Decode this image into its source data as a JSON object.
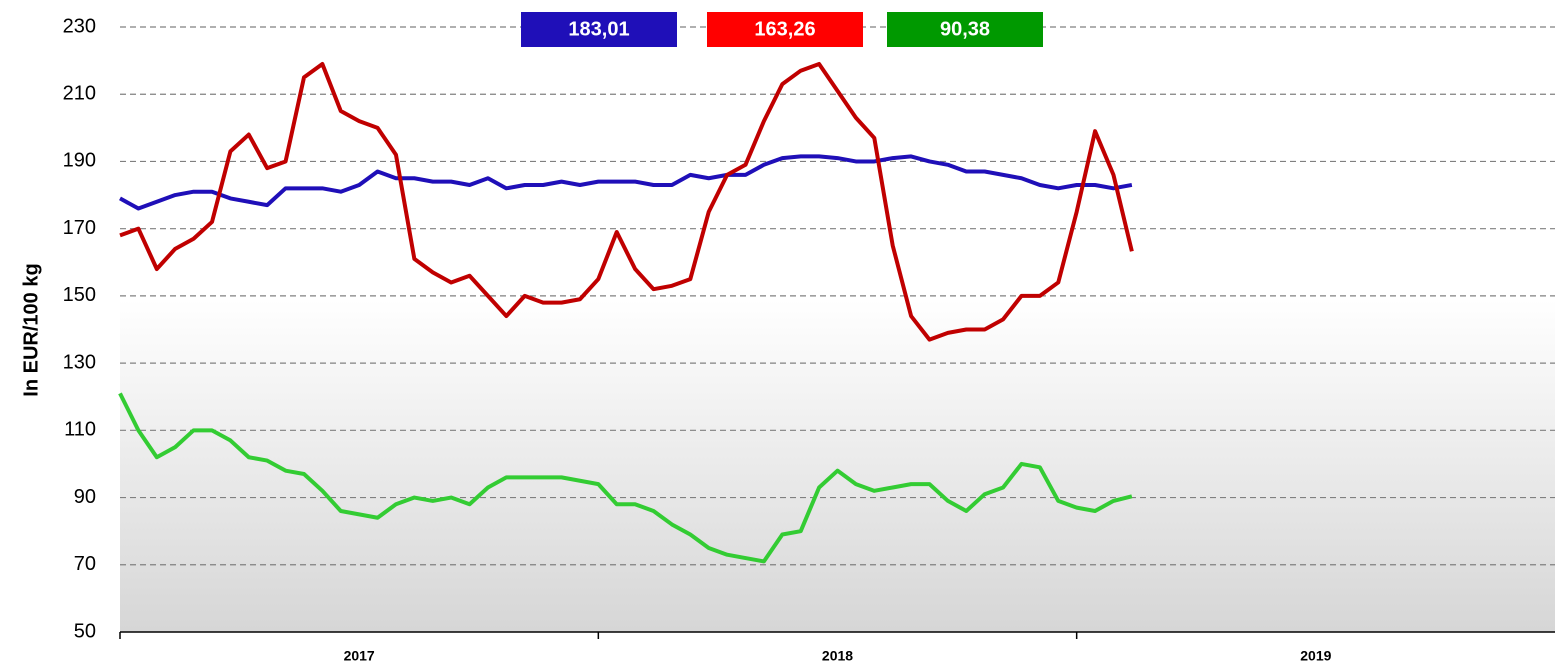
{
  "chart_data": {
    "type": "line",
    "y_label": "In EUR/100 kg",
    "year_labels": [
      "2017",
      "2018",
      "2019"
    ],
    "x": [
      0,
      2,
      4,
      6,
      8,
      10,
      12,
      14,
      16,
      18,
      20,
      22,
      24,
      26,
      28,
      30,
      32,
      34,
      36,
      38,
      40,
      42,
      44,
      46,
      48,
      50,
      52,
      54,
      56,
      58,
      60,
      62,
      64,
      66,
      68,
      70,
      72,
      74,
      76,
      78,
      80,
      82,
      84,
      86,
      88,
      90,
      92,
      94,
      96,
      98,
      100,
      102,
      104,
      106,
      108,
      110
    ],
    "xlim": [
      0,
      156
    ],
    "xticks": [
      0,
      52,
      104
    ],
    "ylim": [
      50,
      230
    ],
    "yticks": [
      50,
      70,
      90,
      110,
      130,
      150,
      170,
      190,
      210,
      230
    ],
    "grid": true,
    "series": [
      {
        "color": "#1f0fb8",
        "values": [
          179,
          176,
          178,
          180,
          181,
          181,
          179,
          178,
          177,
          182,
          182,
          182,
          181,
          183,
          187,
          185,
          185,
          184,
          184,
          183,
          185,
          182,
          183,
          183,
          184,
          183,
          184,
          184,
          184,
          183,
          183,
          186,
          185,
          186,
          186,
          189,
          191,
          191.5,
          191.5,
          191,
          190,
          190,
          191,
          191.5,
          190,
          189,
          187,
          187,
          186,
          185,
          183,
          182,
          183,
          183,
          182,
          183.01
        ],
        "value_labels": [
          null,
          null,
          null,
          null,
          null,
          null,
          null,
          null,
          null,
          null,
          null,
          null,
          null,
          null,
          null,
          null,
          null,
          null,
          null,
          null,
          null,
          null,
          null,
          null,
          null,
          null,
          null,
          null,
          null,
          null,
          null,
          null,
          null,
          null,
          null,
          null,
          null,
          null,
          null,
          null,
          null,
          null,
          null,
          null,
          null,
          null,
          null,
          null,
          null,
          null,
          null,
          null,
          null,
          null,
          null,
          "183,01"
        ]
      },
      {
        "color": "#c00000",
        "values": [
          168,
          170,
          158,
          164,
          167,
          172,
          193,
          198,
          188,
          190,
          215,
          219,
          205,
          202,
          200,
          192,
          161,
          157,
          154,
          156,
          150,
          144,
          150,
          148,
          148,
          149,
          155,
          169,
          158,
          152,
          153,
          155,
          175,
          186,
          189,
          202,
          213,
          217,
          219,
          211,
          203,
          197,
          165,
          144,
          137,
          139,
          140,
          140,
          143,
          150,
          150,
          154,
          175,
          199,
          186,
          163.26
        ],
        "value_labels": [
          null,
          null,
          null,
          null,
          null,
          null,
          null,
          null,
          null,
          null,
          null,
          null,
          null,
          null,
          null,
          null,
          null,
          null,
          null,
          null,
          null,
          null,
          null,
          null,
          null,
          null,
          null,
          null,
          null,
          null,
          null,
          null,
          null,
          null,
          null,
          null,
          null,
          null,
          null,
          null,
          null,
          null,
          null,
          null,
          null,
          null,
          null,
          null,
          null,
          null,
          null,
          null,
          null,
          null,
          null,
          "163,26"
        ]
      },
      {
        "color": "#33cc33",
        "values": [
          121,
          110,
          102,
          105,
          110,
          110,
          107,
          102,
          101,
          98,
          97,
          92,
          86,
          85,
          84,
          88,
          90,
          89,
          90,
          88,
          93,
          96,
          96,
          96,
          96,
          95,
          94,
          88,
          88,
          86,
          82,
          79,
          75,
          73,
          72,
          71,
          79,
          80,
          93,
          98,
          94,
          92,
          93,
          94,
          94,
          89,
          86,
          91,
          93,
          100,
          99,
          89,
          87,
          86,
          89,
          90.38
        ],
        "value_labels": [
          null,
          null,
          null,
          null,
          null,
          null,
          null,
          null,
          null,
          null,
          null,
          null,
          null,
          null,
          null,
          null,
          null,
          null,
          null,
          null,
          null,
          null,
          null,
          null,
          null,
          null,
          null,
          null,
          null,
          null,
          null,
          null,
          null,
          null,
          null,
          null,
          null,
          null,
          null,
          null,
          null,
          null,
          null,
          null,
          null,
          null,
          null,
          null,
          null,
          null,
          null,
          null,
          null,
          null,
          null,
          "90,38"
        ]
      }
    ],
    "box_colors": [
      "#1f0fb8",
      "#ff0000",
      "#009900"
    ]
  }
}
